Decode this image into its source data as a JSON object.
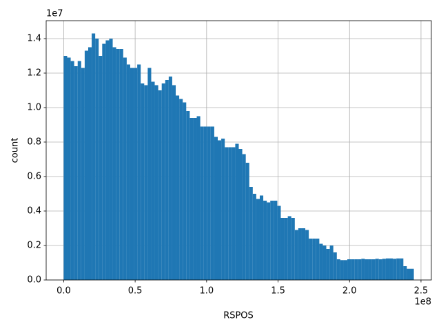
{
  "chart_data": {
    "type": "histogram",
    "xlabel": "RSPOS",
    "ylabel": "count",
    "x_offset_label": "1e8",
    "y_offset_label": "1e7",
    "color": "#1f77b4",
    "grid": true,
    "bins": [
      0,
      0.0245,
      0.049,
      0.0735,
      0.098,
      0.1225,
      0.147,
      0.1715,
      0.196,
      0.2205,
      0.245,
      0.2695,
      0.294,
      0.3185,
      0.343,
      0.3675,
      0.392,
      0.4165,
      0.441,
      0.4655,
      0.49,
      0.5145,
      0.539,
      0.5635,
      0.588,
      0.6125,
      0.637,
      0.6615,
      0.686,
      0.7105,
      0.735,
      0.7595,
      0.784,
      0.8085,
      0.833,
      0.8575,
      0.882,
      0.9065,
      0.931,
      0.9555,
      0.98,
      1.0045,
      1.029,
      1.0535,
      1.078,
      1.1025,
      1.127,
      1.1515,
      1.176,
      1.2005,
      1.225,
      1.2495,
      1.274,
      1.2985,
      1.323,
      1.3475,
      1.372,
      1.3965,
      1.421,
      1.4455,
      1.47,
      1.4945,
      1.519,
      1.5435,
      1.568,
      1.5925,
      1.617,
      1.6415,
      1.666,
      1.6905,
      1.715,
      1.7395,
      1.764,
      1.7885,
      1.813,
      1.8375,
      1.862,
      1.8865,
      1.911,
      1.9355,
      1.96,
      1.9845,
      2.009,
      2.0335,
      2.058,
      2.0825,
      2.107,
      2.1315,
      2.156,
      2.1805,
      2.205,
      2.2295,
      2.254,
      2.2785,
      2.303,
      2.3275,
      2.352,
      2.3765,
      2.401,
      2.4255,
      2.45
    ],
    "values": [
      1.3,
      1.29,
      1.27,
      1.24,
      1.27,
      1.23,
      1.33,
      1.35,
      1.43,
      1.4,
      1.3,
      1.37,
      1.39,
      1.4,
      1.35,
      1.34,
      1.34,
      1.29,
      1.25,
      1.23,
      1.23,
      1.25,
      1.14,
      1.13,
      1.23,
      1.15,
      1.13,
      1.1,
      1.14,
      1.16,
      1.18,
      1.13,
      1.07,
      1.05,
      1.03,
      0.98,
      0.94,
      0.94,
      0.95,
      0.89,
      0.89,
      0.89,
      0.89,
      0.83,
      0.81,
      0.82,
      0.77,
      0.77,
      0.77,
      0.79,
      0.76,
      0.73,
      0.68,
      0.54,
      0.5,
      0.47,
      0.49,
      0.46,
      0.45,
      0.46,
      0.46,
      0.43,
      0.36,
      0.36,
      0.37,
      0.36,
      0.29,
      0.3,
      0.3,
      0.29,
      0.24,
      0.24,
      0.24,
      0.21,
      0.2,
      0.18,
      0.2,
      0.16,
      0.12,
      0.115,
      0.115,
      0.12,
      0.12,
      0.12,
      0.12,
      0.123,
      0.12,
      0.12,
      0.12,
      0.123,
      0.12,
      0.123,
      0.125,
      0.125,
      0.123,
      0.125,
      0.125,
      0.08,
      0.065,
      0.065
    ],
    "xlim": [
      -0.1225,
      2.5725
    ],
    "ylim": [
      0,
      1.504
    ],
    "xticks": [
      {
        "value": 0,
        "label": "0.0"
      },
      0.5,
      {
        "value": 1,
        "label": "1.0"
      },
      1.5,
      {
        "value": 2,
        "label": "2.0"
      },
      2.5
    ],
    "yticks": [
      {
        "value": 0,
        "label": "0.0"
      },
      0.2,
      0.4,
      0.6,
      0.8,
      {
        "value": 1,
        "label": "1.0"
      },
      1.2,
      1.4
    ]
  }
}
